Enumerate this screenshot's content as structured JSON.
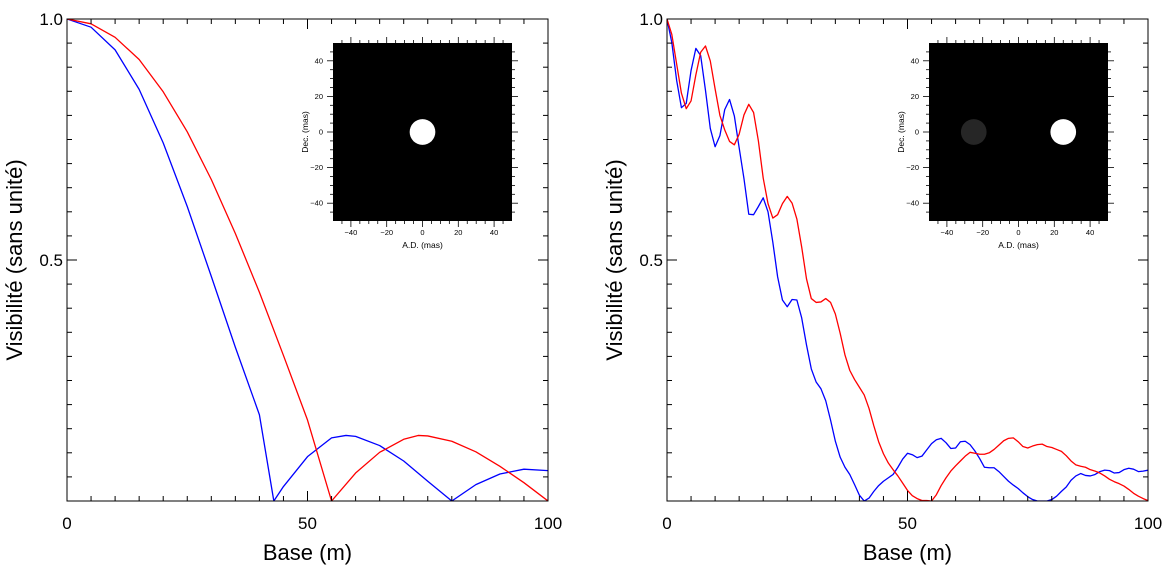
{
  "chart_data": [
    {
      "type": "line",
      "xlabel": "Base (m)",
      "ylabel": "Visibilité (sans unité)",
      "xlim": [
        0,
        100
      ],
      "ylim": [
        0,
        1
      ],
      "xticks": [
        0,
        50,
        100
      ],
      "xtick_labels": [
        "0",
        "50",
        "100"
      ],
      "yticks": [
        0.5,
        1.0
      ],
      "ytick_labels": [
        "0.5",
        "1.0"
      ],
      "grid": false,
      "series": [
        {
          "color": "#0000ff",
          "x": [
            0,
            5,
            10,
            15,
            20,
            25,
            30,
            35,
            40,
            43,
            45,
            50,
            55,
            58,
            60,
            65,
            70,
            75,
            80,
            85,
            90,
            95,
            100
          ],
          "y": [
            1.0,
            0.983,
            0.936,
            0.854,
            0.743,
            0.611,
            0.466,
            0.319,
            0.179,
            0.0,
            0.03,
            0.092,
            0.131,
            0.136,
            0.134,
            0.115,
            0.083,
            0.041,
            0.0,
            0.034,
            0.056,
            0.066,
            0.063
          ]
        },
        {
          "color": "#ff0000",
          "x": [
            0,
            5,
            10,
            15,
            20,
            25,
            30,
            35,
            40,
            45,
            50,
            55,
            60,
            65,
            70,
            73,
            75,
            80,
            85,
            90,
            95,
            100
          ],
          "y": [
            1.0,
            0.99,
            0.962,
            0.916,
            0.849,
            0.766,
            0.667,
            0.555,
            0.433,
            0.302,
            0.168,
            0.0,
            0.058,
            0.101,
            0.128,
            0.136,
            0.135,
            0.124,
            0.102,
            0.072,
            0.038,
            0.0
          ]
        }
      ],
      "inset": {
        "type": "heatmap",
        "xlabel": "A.D. (mas)",
        "ylabel": "Dec. (mas)",
        "xlim": [
          -50,
          50
        ],
        "ylim": [
          -50,
          50
        ],
        "ticks": [
          -40,
          -20,
          0,
          20,
          40
        ],
        "tick_labels": [
          "−40",
          "−20",
          "0",
          "20",
          "40"
        ],
        "background": "#000000",
        "sources": [
          {
            "x": 0,
            "y": 0,
            "radius": 3.5,
            "color": "#ffffff"
          }
        ]
      }
    },
    {
      "type": "line",
      "xlabel": "Base (m)",
      "ylabel": "Visibilité (sans unité)",
      "xlim": [
        0,
        100
      ],
      "ylim": [
        0,
        1
      ],
      "xticks": [
        0,
        50,
        100
      ],
      "xtick_labels": [
        "0",
        "50",
        "100"
      ],
      "yticks": [
        0.5,
        1.0
      ],
      "ytick_labels": [
        "0.5",
        "1.0"
      ],
      "grid": false,
      "series": [
        {
          "color": "#0000ff",
          "x": [
            0,
            1,
            2,
            3,
            4,
            5,
            6,
            7,
            8,
            9,
            10,
            11,
            12,
            13,
            14,
            15,
            16,
            17,
            18,
            19,
            20,
            21,
            22,
            23,
            24,
            25,
            26,
            27,
            28,
            29,
            30,
            31,
            32,
            33,
            34,
            35,
            36,
            37,
            38,
            39,
            40,
            41,
            42,
            43,
            44,
            45,
            46,
            47,
            48,
            49,
            50,
            51,
            52,
            53,
            54,
            55,
            56,
            57,
            58,
            59,
            60,
            61,
            62,
            63,
            64,
            65,
            66,
            67,
            68,
            69,
            70,
            71,
            72,
            73,
            74,
            75,
            76,
            77,
            78,
            79,
            80,
            81,
            82,
            83,
            84,
            85,
            86,
            87,
            88,
            89,
            90,
            91,
            92,
            93,
            94,
            95,
            96,
            97,
            98,
            99,
            100
          ],
          "y": [
            1.0,
            0.951,
            0.873,
            0.816,
            0.825,
            0.893,
            0.939,
            0.924,
            0.852,
            0.773,
            0.735,
            0.758,
            0.812,
            0.833,
            0.799,
            0.733,
            0.669,
            0.595,
            0.594,
            0.611,
            0.629,
            0.6,
            0.537,
            0.465,
            0.417,
            0.403,
            0.418,
            0.417,
            0.38,
            0.324,
            0.274,
            0.247,
            0.233,
            0.208,
            0.168,
            0.124,
            0.091,
            0.07,
            0.055,
            0.034,
            0.012,
            0.0,
            0.006,
            0.02,
            0.032,
            0.041,
            0.048,
            0.055,
            0.07,
            0.087,
            0.099,
            0.096,
            0.09,
            0.093,
            0.106,
            0.119,
            0.127,
            0.13,
            0.121,
            0.109,
            0.11,
            0.123,
            0.124,
            0.117,
            0.104,
            0.088,
            0.07,
            0.069,
            0.069,
            0.061,
            0.051,
            0.041,
            0.033,
            0.026,
            0.017,
            0.009,
            0.003,
            0.0,
            0.0,
            0.0,
            0.003,
            0.01,
            0.02,
            0.029,
            0.043,
            0.052,
            0.057,
            0.053,
            0.052,
            0.055,
            0.061,
            0.064,
            0.063,
            0.058,
            0.059,
            0.065,
            0.068,
            0.066,
            0.061,
            0.062,
            0.064
          ]
        },
        {
          "color": "#ff0000",
          "x": [
            0,
            1,
            2,
            3,
            4,
            5,
            6,
            7,
            8,
            9,
            10,
            11,
            12,
            13,
            14,
            15,
            16,
            17,
            18,
            19,
            20,
            21,
            22,
            23,
            24,
            25,
            26,
            27,
            28,
            29,
            30,
            31,
            32,
            33,
            34,
            35,
            36,
            37,
            38,
            39,
            40,
            41,
            42,
            43,
            44,
            45,
            46,
            47,
            48,
            49,
            50,
            51,
            52,
            53,
            54,
            55,
            56,
            57,
            58,
            59,
            60,
            61,
            62,
            63,
            64,
            65,
            66,
            67,
            68,
            69,
            70,
            71,
            72,
            73,
            74,
            75,
            76,
            77,
            78,
            79,
            80,
            81,
            82,
            83,
            84,
            85,
            86,
            87,
            88,
            89,
            90,
            91,
            92,
            93,
            94,
            95,
            96,
            97,
            98,
            99,
            100
          ],
          "y": [
            1.0,
            0.968,
            0.907,
            0.846,
            0.814,
            0.83,
            0.884,
            0.931,
            0.944,
            0.913,
            0.855,
            0.8,
            0.77,
            0.746,
            0.739,
            0.761,
            0.801,
            0.823,
            0.806,
            0.747,
            0.67,
            0.617,
            0.587,
            0.594,
            0.617,
            0.632,
            0.618,
            0.585,
            0.527,
            0.461,
            0.42,
            0.412,
            0.413,
            0.42,
            0.412,
            0.388,
            0.348,
            0.303,
            0.271,
            0.252,
            0.236,
            0.22,
            0.192,
            0.156,
            0.123,
            0.098,
            0.079,
            0.065,
            0.052,
            0.037,
            0.022,
            0.011,
            0.005,
            0.001,
            0.001,
            0.0,
            0.013,
            0.032,
            0.048,
            0.062,
            0.073,
            0.083,
            0.093,
            0.101,
            0.099,
            0.097,
            0.097,
            0.1,
            0.107,
            0.116,
            0.125,
            0.13,
            0.131,
            0.123,
            0.113,
            0.11,
            0.114,
            0.117,
            0.118,
            0.113,
            0.111,
            0.107,
            0.103,
            0.094,
            0.083,
            0.075,
            0.072,
            0.07,
            0.065,
            0.062,
            0.058,
            0.052,
            0.045,
            0.04,
            0.036,
            0.031,
            0.024,
            0.016,
            0.01,
            0.005,
            0.001
          ]
        }
      ],
      "inset": {
        "type": "heatmap",
        "xlabel": "A.D. (mas)",
        "ylabel": "Dec. (mas)",
        "xlim": [
          -50,
          50
        ],
        "ylim": [
          -50,
          50
        ],
        "ticks": [
          -40,
          -20,
          0,
          20,
          40
        ],
        "tick_labels": [
          "−40",
          "−20",
          "0",
          "20",
          "40"
        ],
        "background": "#000000",
        "sources": [
          {
            "x": -25,
            "y": 0,
            "radius": 3.5,
            "color": "#262626"
          },
          {
            "x": 25,
            "y": 0,
            "radius": 3.5,
            "color": "#ffffff"
          }
        ]
      }
    }
  ]
}
